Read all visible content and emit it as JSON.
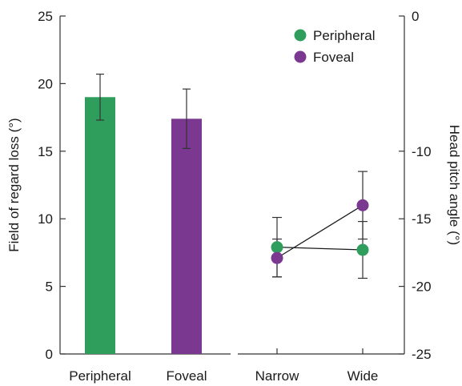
{
  "chart_data": [
    {
      "type": "bar",
      "categories": [
        "Peripheral",
        "Foveal"
      ],
      "values": [
        19.0,
        17.4
      ],
      "errors": [
        1.7,
        2.2
      ],
      "ylabel": "Field of regard loss (°)",
      "ylim": [
        0,
        25
      ],
      "yticks": [
        0,
        5,
        10,
        15,
        20,
        25
      ],
      "colors": [
        "#2f9e5c",
        "#7b3891"
      ]
    },
    {
      "type": "line",
      "categories": [
        "Narrow",
        "Wide"
      ],
      "series": [
        {
          "name": "Peripheral",
          "color": "#2f9e5c",
          "values": [
            -17.1,
            -17.3
          ],
          "errors": [
            2.2,
            2.1
          ]
        },
        {
          "name": "Foveal",
          "color": "#7b3891",
          "values": [
            -17.9,
            -14.0
          ],
          "errors": [
            1.4,
            2.5
          ]
        }
      ],
      "ylabel": "Head pitch angle (°)",
      "ylim": [
        -25,
        0
      ],
      "yticks": [
        0,
        -10,
        -15,
        -20,
        -25
      ],
      "legend_position": "top-right"
    }
  ]
}
